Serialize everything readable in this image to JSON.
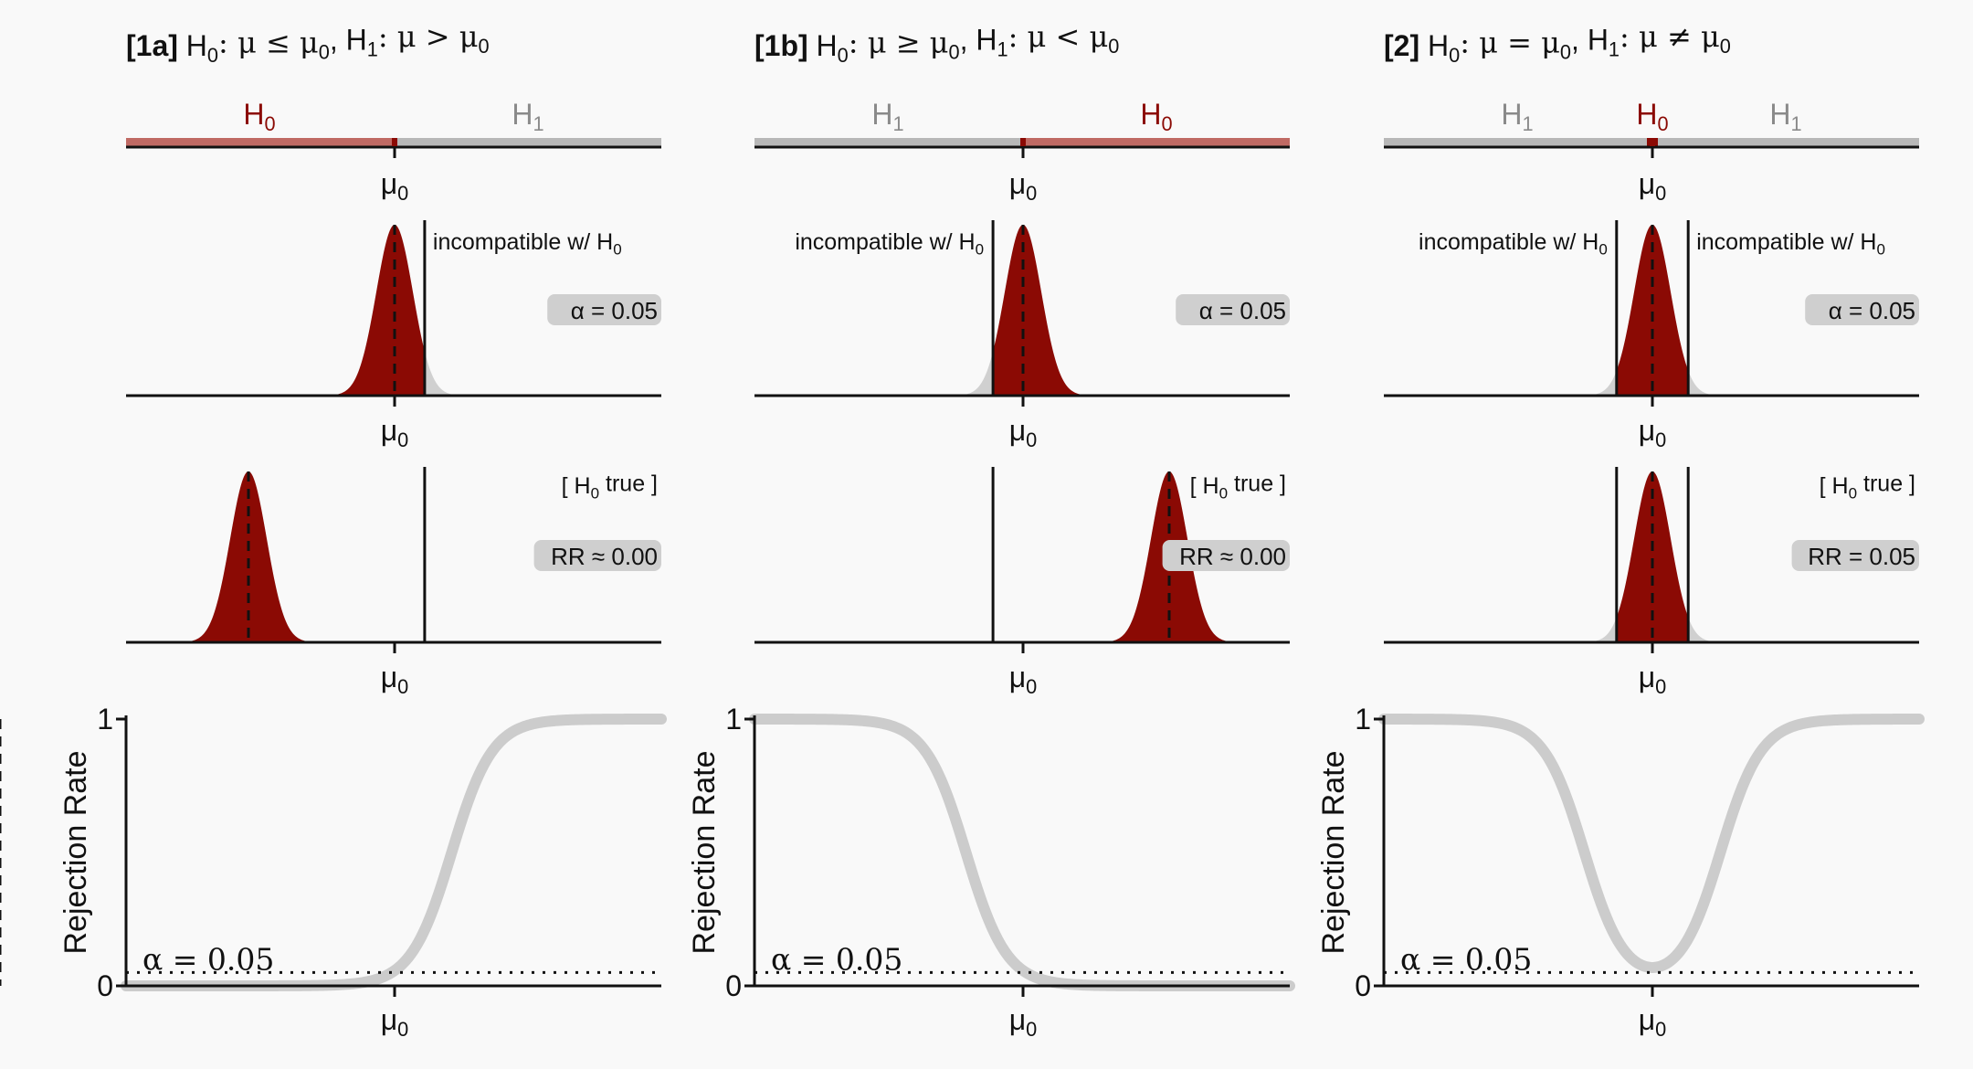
{
  "figure_background": "#f9f9f9",
  "colors": {
    "h0_fill": "#8b0a04",
    "h0_bar": "#c06a64",
    "h1_bar": "#b8b8b8",
    "curve_tail": "#d0d0d0",
    "rejection_curve": "#cccccc",
    "label_box": "#cfcfcf",
    "h1_text": "#8a8a8a",
    "ink": "#111111"
  },
  "labels": {
    "mu0": "μ",
    "mu0_sub": "0",
    "incompatible": "incompatible w/ H",
    "incompatible_sub": "0",
    "h0_true_open": "[ H",
    "h0_true_sub": "0",
    "h0_true_close": " true ]",
    "y_axis": "Rejection Rate",
    "tick_one": "1",
    "tick_zero": "0",
    "alpha_line": "α = 0.05"
  },
  "panels": [
    {
      "tag": "[1a]",
      "hypothesis": {
        "h0_symbol": "H",
        "h0_sub": "0",
        "h0_rel": ": μ ≤ μ",
        "h1_symbol": "H",
        "h1_sub": "1",
        "h1_rel": ": μ > μ",
        "mu_sub": "0"
      },
      "bar": [
        {
          "label": "H",
          "sub": "0",
          "side": "left",
          "kind": "h0"
        },
        {
          "label": "H",
          "sub": "1",
          "side": "right",
          "kind": "h1"
        }
      ],
      "criterion": {
        "alpha_label": "α = 0.05",
        "critical": [
          1.645
        ],
        "incompatible_side": "right"
      },
      "h0_true": {
        "rr_label": "RR ≈ 0.00",
        "true_mean": -8,
        "critical": [
          1.645
        ]
      },
      "chart_data": {
        "type": "line",
        "xlabel": "μ",
        "ylabel": "Rejection Rate",
        "ylim": [
          0,
          1
        ],
        "yticks": [
          0,
          1
        ],
        "alpha": 0.05,
        "alpha_label": "α = 0.05",
        "true_mean_marker": -8,
        "curve": "one-sided-right"
      }
    },
    {
      "tag": "[1b]",
      "hypothesis": {
        "h0_symbol": "H",
        "h0_sub": "0",
        "h0_rel": ": μ ≥ μ",
        "h1_symbol": "H",
        "h1_sub": "1",
        "h1_rel": ": μ < μ",
        "mu_sub": "0"
      },
      "bar": [
        {
          "label": "H",
          "sub": "1",
          "side": "left",
          "kind": "h1"
        },
        {
          "label": "H",
          "sub": "0",
          "side": "right",
          "kind": "h0"
        }
      ],
      "criterion": {
        "alpha_label": "α = 0.05",
        "critical": [
          -1.645
        ],
        "incompatible_side": "left"
      },
      "h0_true": {
        "rr_label": "RR ≈ 0.00",
        "true_mean": 8,
        "critical": [
          -1.645
        ]
      },
      "chart_data": {
        "type": "line",
        "xlabel": "μ",
        "ylabel": "Rejection Rate",
        "ylim": [
          0,
          1
        ],
        "yticks": [
          0,
          1
        ],
        "alpha": 0.05,
        "alpha_label": "α = 0.05",
        "true_mean_marker": 8,
        "curve": "one-sided-left"
      }
    },
    {
      "tag": "[2]",
      "hypothesis": {
        "h0_symbol": "H",
        "h0_sub": "0",
        "h0_rel": ": μ = μ",
        "h1_symbol": "H",
        "h1_sub": "1",
        "h1_rel": ": μ ≠ μ",
        "mu_sub": "0"
      },
      "bar": [
        {
          "label": "H",
          "sub": "1",
          "side": "left",
          "kind": "h1"
        },
        {
          "label": "H",
          "sub": "0",
          "side": "center",
          "kind": "h0"
        },
        {
          "label": "H",
          "sub": "1",
          "side": "right",
          "kind": "h1"
        }
      ],
      "criterion": {
        "alpha_label": "α = 0.05",
        "critical": [
          -1.96,
          1.96
        ],
        "incompatible_side": "both"
      },
      "h0_true": {
        "rr_label": "RR = 0.05",
        "true_mean": 0,
        "critical": [
          -1.96,
          1.96
        ]
      },
      "chart_data": {
        "type": "line",
        "xlabel": "μ",
        "ylabel": "Rejection Rate",
        "ylim": [
          0,
          1
        ],
        "yticks": [
          0,
          1
        ],
        "alpha": 0.05,
        "alpha_label": "α = 0.05",
        "true_mean_marker": 0,
        "curve": "two-sided"
      }
    }
  ]
}
